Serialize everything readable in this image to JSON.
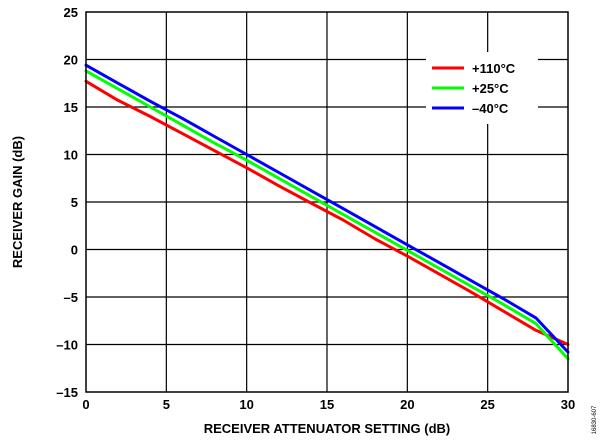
{
  "chart_data": {
    "type": "line",
    "xlabel": "RECEIVER ATTENUATOR SETTING (dB)",
    "ylabel": "RECEIVER GAIN (dB)",
    "xlim": [
      0,
      30
    ],
    "ylim": [
      -15,
      25
    ],
    "xticks": [
      "0",
      "5",
      "10",
      "15",
      "20",
      "25",
      "30"
    ],
    "yticks": [
      "–15",
      "–10",
      "–5",
      "0",
      "5",
      "10",
      "15",
      "20",
      "25"
    ],
    "grid": true,
    "legend_position": "top-right",
    "series": [
      {
        "name": "+110°C",
        "color": "#ff0000",
        "x": [
          0,
          2,
          4,
          6,
          8,
          10,
          12,
          14,
          16,
          18,
          20,
          22,
          24,
          26,
          28,
          30
        ],
        "y": [
          17.7,
          15.7,
          14.0,
          12.2,
          10.4,
          8.6,
          6.7,
          4.9,
          3.1,
          1.1,
          -0.7,
          -2.6,
          -4.5,
          -6.5,
          -8.5,
          -10.0
        ]
      },
      {
        "name": "+25°C",
        "color": "#00ff00",
        "x": [
          0,
          2,
          4,
          6,
          8,
          10,
          12,
          14,
          16,
          18,
          20,
          22,
          24,
          26,
          28,
          30
        ],
        "y": [
          18.8,
          16.9,
          15.0,
          13.1,
          11.2,
          9.4,
          7.5,
          5.6,
          3.7,
          1.8,
          -0.1,
          -2.0,
          -3.9,
          -5.8,
          -7.8,
          -11.5
        ]
      },
      {
        "name": "–40°C",
        "color": "#0000ff",
        "x": [
          0,
          2,
          4,
          6,
          8,
          10,
          12,
          14,
          16,
          18,
          20,
          22,
          24,
          26,
          28,
          30
        ],
        "y": [
          19.4,
          17.5,
          15.6,
          13.8,
          11.9,
          10.0,
          8.1,
          6.2,
          4.3,
          2.4,
          0.5,
          -1.4,
          -3.3,
          -5.2,
          -7.2,
          -10.8
        ]
      }
    ]
  },
  "figure_id": "16830-607"
}
